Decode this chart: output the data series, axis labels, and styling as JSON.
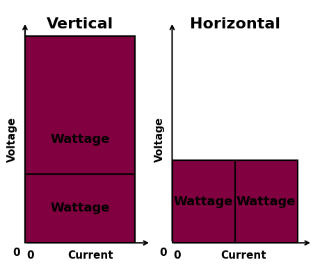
{
  "title_left": "Vertical",
  "title_right": "Horizontal",
  "rect_color": "#800040",
  "rect_edge_color": "black",
  "wattage_label": "Wattage",
  "wattage_fontsize": 13,
  "title_fontsize": 16,
  "axis_label_fontsize": 11,
  "xlabel": "Current",
  "ylabel": "Voltage",
  "zero_label": "0",
  "background_color": "white"
}
